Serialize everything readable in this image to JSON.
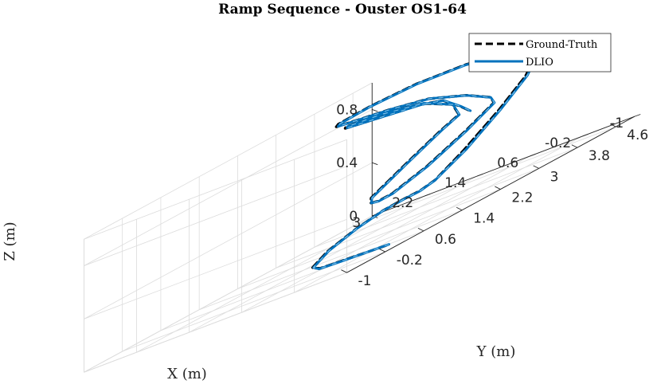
{
  "chart_data": {
    "type": "line3d",
    "title": "Ramp Sequence - Ouster OS1-64",
    "xlabel": "X (m)",
    "ylabel": "Y (m)",
    "zlabel": "Z (m)",
    "xlim": [
      -1,
      3
    ],
    "ylim": [
      -1,
      5
    ],
    "zlim": [
      0,
      1
    ],
    "x_ticks": [
      3,
      2.2,
      1.4,
      0.6,
      -0.2,
      -1
    ],
    "x_tick_labels": [
      "3",
      "2.2",
      "1.4",
      "0.6",
      "-0.2",
      "-1"
    ],
    "y_ticks": [
      -1,
      -0.2,
      0.6,
      1.4,
      2.2,
      3,
      3.8,
      4.6
    ],
    "y_tick_labels": [
      "-1",
      "-0.2",
      "0.6",
      "1.4",
      "2.2",
      "3",
      "3.8",
      "4.6"
    ],
    "z_ticks": [
      0,
      0.4,
      0.8
    ],
    "z_tick_labels": [
      "0",
      "0.4",
      "0.8"
    ],
    "grid": true,
    "legend_position": "top-right",
    "series": [
      {
        "name": "Ground-Truth",
        "color": "#000000",
        "style": "dashed",
        "points": [
          [
            -0.95,
            -0.12,
            0.04
          ],
          [
            -0.2,
            0.05,
            0.04
          ],
          [
            0.25,
            0.16,
            0.04
          ],
          [
            0.55,
            0.4,
            0.05
          ],
          [
            0.7,
            0.92,
            0.1
          ],
          [
            0.62,
            1.41,
            0.16
          ],
          [
            0.35,
            1.61,
            0.21
          ],
          [
            0.0,
            1.58,
            0.24
          ],
          [
            -0.3,
            1.48,
            0.26
          ],
          [
            -0.55,
            1.46,
            0.3
          ],
          [
            -0.7,
            1.85,
            0.42
          ],
          [
            -0.72,
            2.55,
            0.58
          ],
          [
            -0.65,
            3.2,
            0.72
          ],
          [
            -0.45,
            3.7,
            0.82
          ],
          [
            0.05,
            4.05,
            0.86
          ],
          [
            0.6,
            4.35,
            0.88
          ],
          [
            1.2,
            4.5,
            0.9
          ],
          [
            1.9,
            4.42,
            0.9
          ],
          [
            2.4,
            4.12,
            0.88
          ],
          [
            2.6,
            3.75,
            0.86
          ],
          [
            2.45,
            3.5,
            0.86
          ],
          [
            2.05,
            3.35,
            0.86
          ],
          [
            1.5,
            3.3,
            0.85
          ],
          [
            0.9,
            3.3,
            0.82
          ],
          [
            0.3,
            3.27,
            0.74
          ],
          [
            -0.1,
            3.22,
            0.66
          ],
          [
            -0.28,
            3.05,
            0.62
          ],
          [
            -0.25,
            2.5,
            0.52
          ],
          [
            -0.1,
            1.9,
            0.4
          ],
          [
            0.1,
            1.45,
            0.32
          ],
          [
            0.35,
            1.5,
            0.3
          ],
          [
            0.55,
            1.62,
            0.3
          ],
          [
            0.75,
            1.9,
            0.32
          ],
          [
            0.72,
            2.6,
            0.44
          ],
          [
            0.65,
            3.2,
            0.55
          ],
          [
            0.62,
            3.55,
            0.6
          ],
          [
            0.9,
            3.8,
            0.68
          ],
          [
            1.5,
            4.0,
            0.76
          ],
          [
            2.1,
            3.95,
            0.8
          ],
          [
            2.45,
            3.7,
            0.82
          ],
          [
            2.35,
            3.55,
            0.82
          ],
          [
            1.85,
            3.47,
            0.81
          ],
          [
            1.1,
            3.43,
            0.79
          ],
          [
            0.75,
            3.4,
            0.76
          ],
          [
            0.3,
            3.15,
            0.68
          ],
          [
            0.05,
            3.0,
            0.63
          ]
        ]
      },
      {
        "name": "DLIO",
        "color": "#0072BD",
        "style": "solid",
        "points": [
          [
            -1.0,
            -0.12,
            0.04
          ],
          [
            -0.2,
            0.02,
            0.04
          ],
          [
            0.25,
            0.13,
            0.04
          ],
          [
            0.53,
            0.4,
            0.05
          ],
          [
            0.68,
            0.92,
            0.1
          ],
          [
            0.6,
            1.39,
            0.16
          ],
          [
            0.33,
            1.58,
            0.21
          ],
          [
            -0.02,
            1.55,
            0.24
          ],
          [
            -0.32,
            1.45,
            0.26
          ],
          [
            -0.57,
            1.43,
            0.3
          ],
          [
            -0.74,
            1.85,
            0.42
          ],
          [
            -0.75,
            2.55,
            0.58
          ],
          [
            -0.68,
            3.2,
            0.72
          ],
          [
            -0.48,
            3.68,
            0.82
          ],
          [
            0.02,
            4.02,
            0.86
          ],
          [
            0.58,
            4.32,
            0.88
          ],
          [
            1.18,
            4.46,
            0.9
          ],
          [
            1.86,
            4.38,
            0.9
          ],
          [
            2.36,
            4.08,
            0.88
          ],
          [
            2.55,
            3.72,
            0.86
          ],
          [
            2.4,
            3.47,
            0.86
          ],
          [
            2.0,
            3.32,
            0.86
          ],
          [
            1.46,
            3.27,
            0.85
          ],
          [
            0.86,
            3.27,
            0.82
          ],
          [
            0.27,
            3.24,
            0.74
          ],
          [
            -0.13,
            3.19,
            0.66
          ],
          [
            -0.31,
            3.02,
            0.62
          ],
          [
            -0.28,
            2.48,
            0.52
          ],
          [
            -0.13,
            1.88,
            0.4
          ],
          [
            0.07,
            1.42,
            0.32
          ],
          [
            0.32,
            1.47,
            0.3
          ],
          [
            0.52,
            1.59,
            0.3
          ],
          [
            0.72,
            1.88,
            0.32
          ],
          [
            0.69,
            2.58,
            0.44
          ],
          [
            0.62,
            3.18,
            0.55
          ],
          [
            0.59,
            3.52,
            0.6
          ],
          [
            0.87,
            3.77,
            0.68
          ],
          [
            1.46,
            3.97,
            0.76
          ],
          [
            2.06,
            3.92,
            0.8
          ],
          [
            2.4,
            3.67,
            0.82
          ],
          [
            2.3,
            3.52,
            0.82
          ],
          [
            1.8,
            3.44,
            0.81
          ],
          [
            1.07,
            3.4,
            0.79
          ],
          [
            0.72,
            3.37,
            0.76
          ],
          [
            0.27,
            3.12,
            0.68
          ],
          [
            0.02,
            2.97,
            0.63
          ]
        ]
      }
    ]
  }
}
